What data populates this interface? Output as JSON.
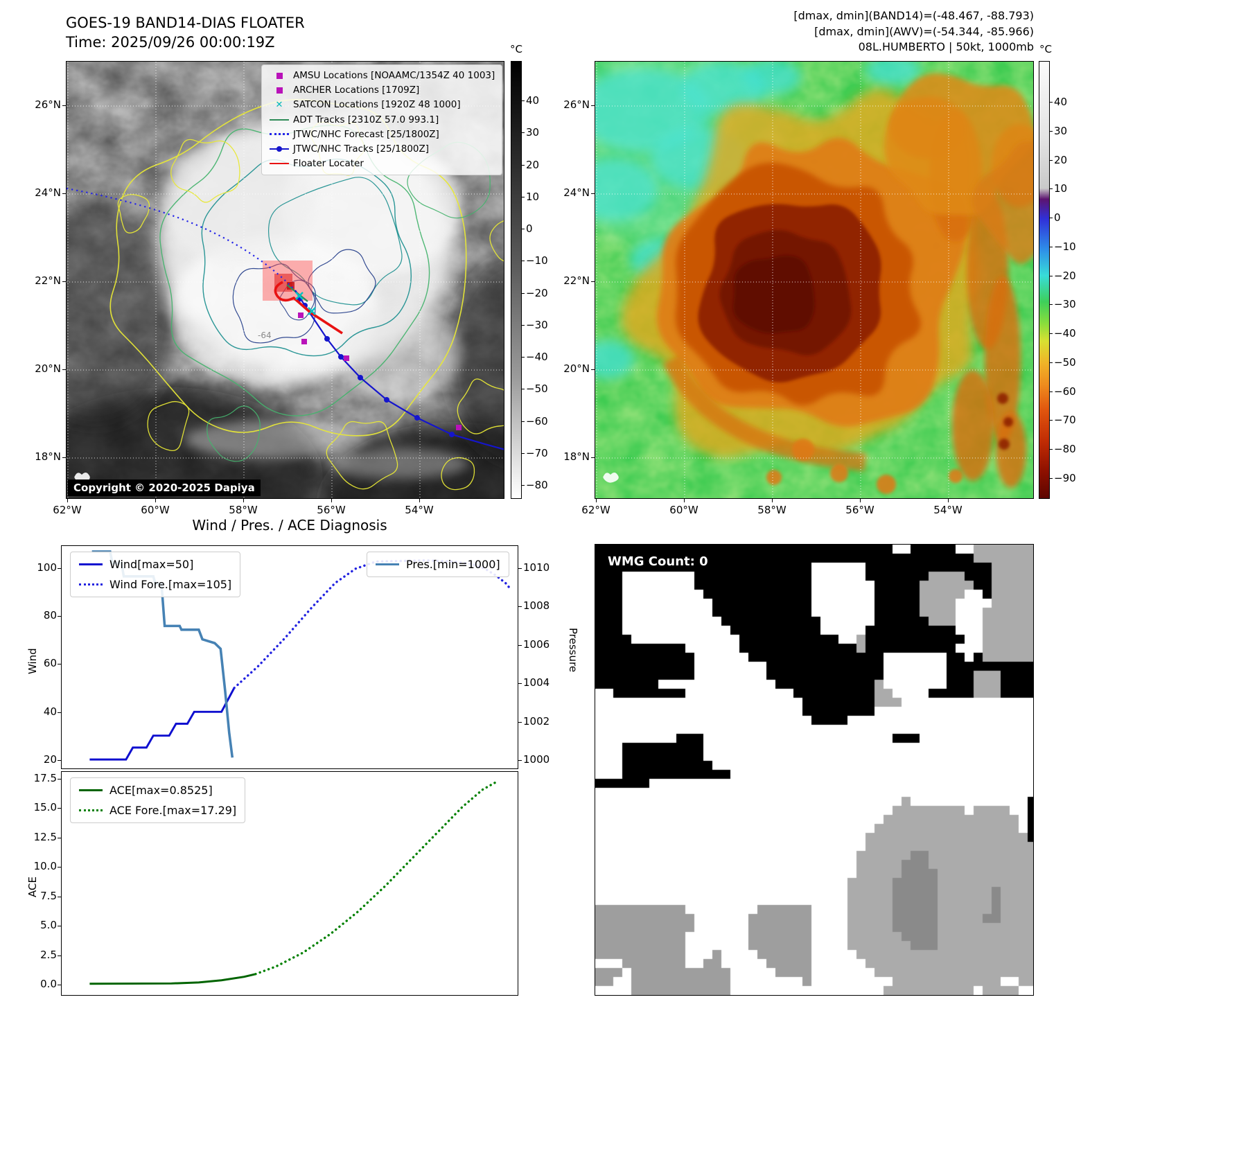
{
  "top_left_map": {
    "title": "GOES-19 BAND14-DIAS FLOATER",
    "time_line": "Time: 2025/09/26 00:00:19Z",
    "copyright": "Copyright © 2020-2025 Dapiya",
    "contour_label": "-64",
    "legend": [
      {
        "label": "AMSU Locations [NOAAMC/1354Z 40 1003]",
        "marker": "square",
        "color": "#b912b9"
      },
      {
        "label": "ARCHER Locations [1709Z]",
        "marker": "square",
        "color": "#b912b9"
      },
      {
        "label": "SATCON Locations [1920Z 48 1000]",
        "marker": "x",
        "color": "#00b8b8"
      },
      {
        "label": "ADT Tracks [2310Z 57.0 993.1]",
        "marker": "line",
        "color": "#2e8b57"
      },
      {
        "label": "JTWC/NHC Forecast [25/1800Z]",
        "marker": "dotted",
        "color": "#2424e8"
      },
      {
        "label": "JTWC/NHC Tracks [25/1800Z]",
        "marker": "line-dot",
        "color": "#1515cc"
      },
      {
        "label": "Floater Locater",
        "marker": "line",
        "color": "#e81212"
      }
    ],
    "x_ticks": [
      "62°W",
      "60°W",
      "58°W",
      "56°W",
      "54°W"
    ],
    "y_ticks": [
      "26°N",
      "24°N",
      "22°N",
      "20°N",
      "18°N"
    ],
    "colorbar": {
      "unit": "°C",
      "ticks": [
        "40",
        "30",
        "20",
        "10",
        "0",
        "−10",
        "−20",
        "−30",
        "−40",
        "−50",
        "−60",
        "−70",
        "−80"
      ]
    }
  },
  "top_right_map": {
    "info_lines": [
      "[dmax, dmin](BAND14)=(-48.467, -88.793)",
      "[dmax, dmin](AWV)=(-54.344, -85.966)",
      "08L.HUMBERTO | 50kt, 1000mb"
    ],
    "x_ticks": [
      "62°W",
      "60°W",
      "58°W",
      "56°W",
      "54°W"
    ],
    "y_ticks": [
      "26°N",
      "24°N",
      "22°N",
      "20°N",
      "18°N"
    ],
    "colorbar": {
      "unit": "°C",
      "ticks": [
        "40",
        "30",
        "20",
        "10",
        "0",
        "−10",
        "−20",
        "−30",
        "−40",
        "−50",
        "−60",
        "−70",
        "−80",
        "−90"
      ]
    }
  },
  "bottom_right_map": {
    "label": "WMG Count: 0"
  },
  "chart_data": [
    {
      "type": "line",
      "panel": "wind_pressure",
      "title": "Wind / Pres. / ACE Diagnosis",
      "left_axis": {
        "label": "Wind",
        "ticks": [
          "100",
          "80",
          "60",
          "40",
          "20"
        ],
        "range": [
          20,
          100
        ]
      },
      "right_axis": {
        "label": "Pressure",
        "ticks": [
          "1010",
          "1008",
          "1006",
          "1004",
          "1002",
          "1000"
        ],
        "range": [
          1000,
          1010
        ]
      },
      "legend_left": [
        "Wind[max=50]",
        "Wind Fore.[max=105]"
      ],
      "legend_right": [
        "Pres.[min=1000]"
      ],
      "series": [
        {
          "name": "Wind[max=50]",
          "axis": "left",
          "style": "solid",
          "color": "#0f0fcf",
          "width": 3,
          "points": [
            [
              0.06,
              20
            ],
            [
              0.14,
              20
            ],
            [
              0.155,
              25
            ],
            [
              0.185,
              25
            ],
            [
              0.2,
              30
            ],
            [
              0.235,
              30
            ],
            [
              0.25,
              35
            ],
            [
              0.275,
              35
            ],
            [
              0.29,
              40
            ],
            [
              0.35,
              40
            ],
            [
              0.378,
              50
            ]
          ]
        },
        {
          "name": "Wind Fore.[max=105]",
          "axis": "left",
          "style": "dotted",
          "color": "#2222e0",
          "width": 3.4,
          "points": [
            [
              0.378,
              50
            ],
            [
              0.43,
              59
            ],
            [
              0.49,
              71
            ],
            [
              0.55,
              84
            ],
            [
              0.6,
              94
            ],
            [
              0.645,
              100
            ],
            [
              0.69,
              103
            ],
            [
              0.8,
              103.5
            ],
            [
              0.86,
              103
            ],
            [
              0.9,
              102
            ],
            [
              0.93,
              100
            ],
            [
              0.955,
              97
            ],
            [
              0.975,
              94
            ],
            [
              0.988,
              91
            ]
          ]
        },
        {
          "name": "Pres.[min=1000]",
          "axis": "right",
          "style": "solid",
          "color": "#4682b4",
          "width": 3.6,
          "points": [
            [
              0.065,
              1010.9
            ],
            [
              0.105,
              1010.9
            ],
            [
              0.11,
              1010.3
            ],
            [
              0.13,
              1010.3
            ],
            [
              0.135,
              1009.6
            ],
            [
              0.2,
              1009.6
            ],
            [
              0.205,
              1009.2
            ],
            [
              0.218,
              1009.2
            ],
            [
              0.225,
              1007.0
            ],
            [
              0.258,
              1007.0
            ],
            [
              0.262,
              1006.8
            ],
            [
              0.3,
              1006.8
            ],
            [
              0.308,
              1006.3
            ],
            [
              0.335,
              1006.1
            ],
            [
              0.348,
              1005.8
            ],
            [
              0.358,
              1003.6
            ],
            [
              0.367,
              1001.4
            ],
            [
              0.374,
              1000.1
            ]
          ]
        }
      ]
    },
    {
      "type": "line",
      "panel": "ace",
      "left_axis": {
        "label": "ACE",
        "ticks": [
          "17.5",
          "15.0",
          "12.5",
          "10.0",
          "7.5",
          "5.0",
          "2.5",
          "0.0"
        ],
        "range": [
          0,
          17.5
        ]
      },
      "legend_left": [
        "ACE[max=0.8525]",
        "ACE Fore.[max=17.29]"
      ],
      "series": [
        {
          "name": "ACE[max=0.8525]",
          "axis": "left",
          "style": "solid",
          "color": "#006400",
          "width": 3,
          "points": [
            [
              0.06,
              0.02
            ],
            [
              0.24,
              0.05
            ],
            [
              0.3,
              0.13
            ],
            [
              0.35,
              0.32
            ],
            [
              0.4,
              0.62
            ],
            [
              0.425,
              0.8525
            ]
          ]
        },
        {
          "name": "ACE Fore.[max=17.29]",
          "axis": "left",
          "style": "dotted",
          "color": "#008000",
          "width": 3.4,
          "points": [
            [
              0.425,
              0.8525
            ],
            [
              0.47,
              1.5
            ],
            [
              0.53,
              2.7
            ],
            [
              0.59,
              4.3
            ],
            [
              0.65,
              6.2
            ],
            [
              0.71,
              8.4
            ],
            [
              0.77,
              10.8
            ],
            [
              0.83,
              13.2
            ],
            [
              0.88,
              15.2
            ],
            [
              0.925,
              16.7
            ],
            [
              0.952,
              17.29
            ]
          ]
        }
      ]
    }
  ]
}
